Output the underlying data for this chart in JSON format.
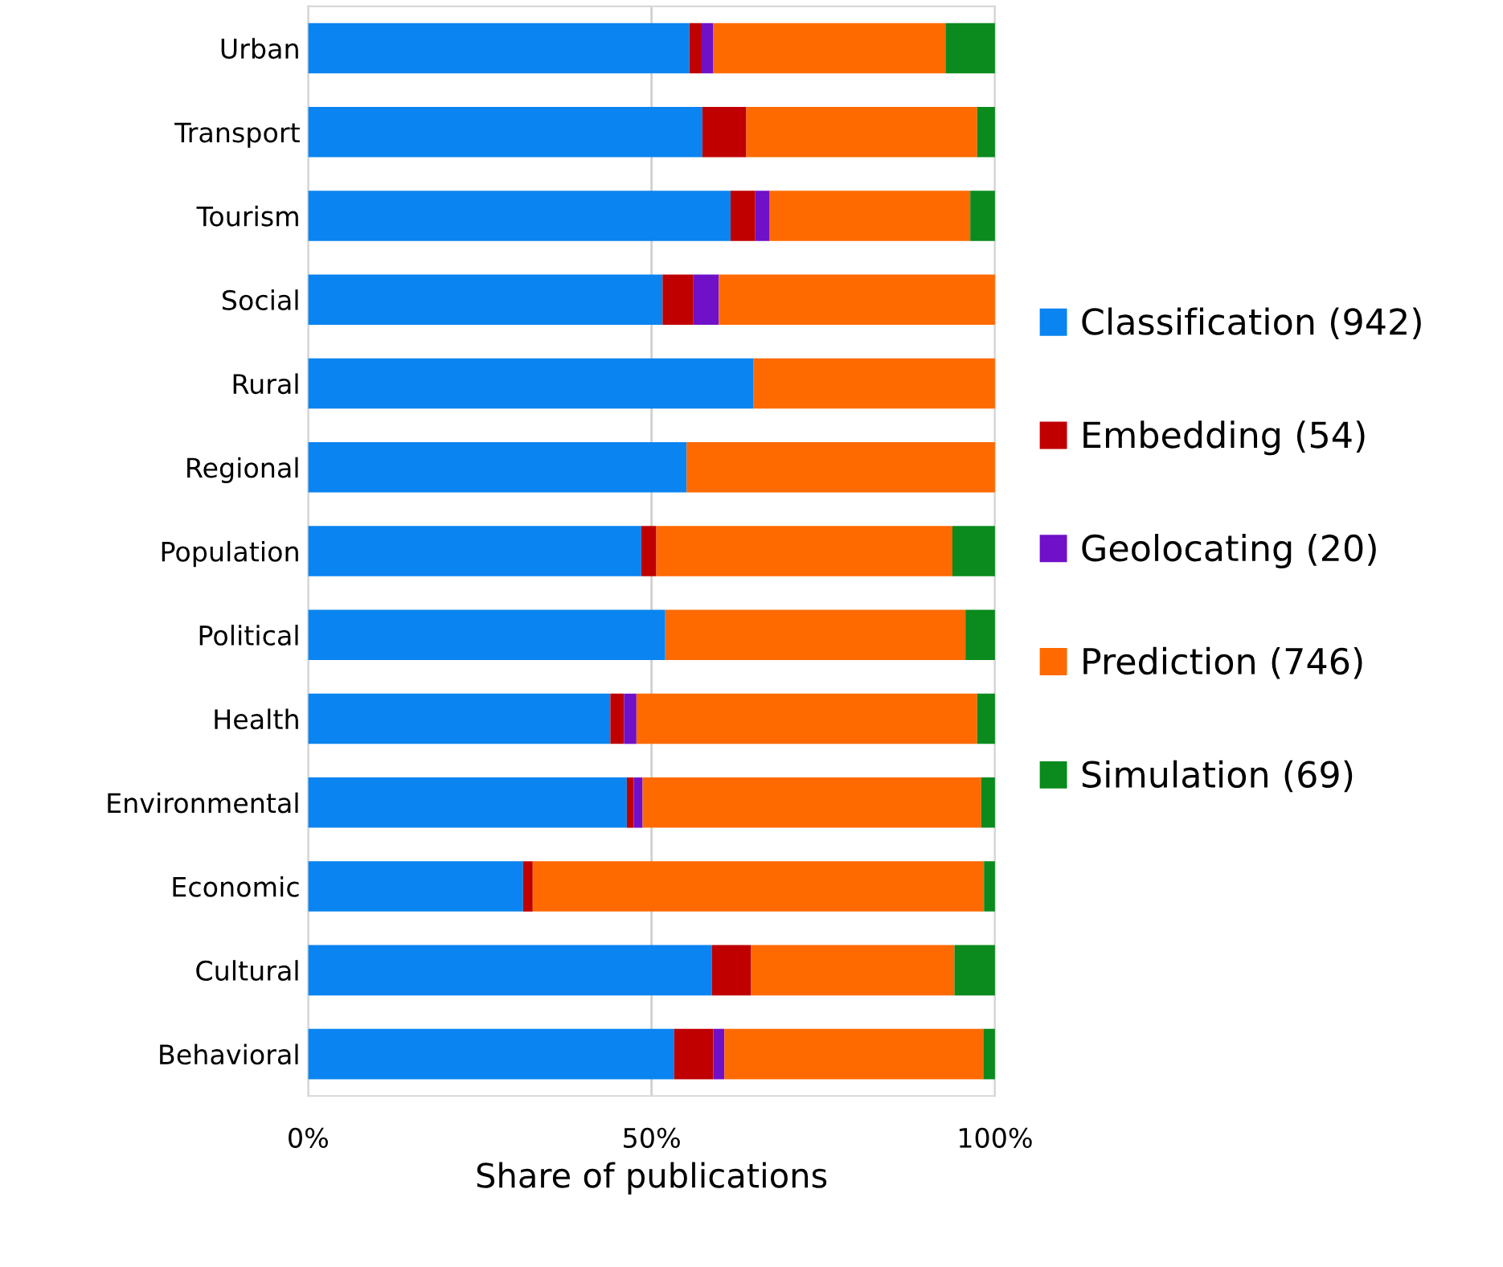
{
  "chart_data": {
    "type": "bar",
    "orientation": "horizontal",
    "stacked": true,
    "xlabel": "Share of publications",
    "categories": [
      "Urban",
      "Transport",
      "Tourism",
      "Social",
      "Rural",
      "Regional",
      "Population",
      "Political",
      "Health",
      "Environmental",
      "Economic",
      "Cultural",
      "Behavioral"
    ],
    "series": [
      {
        "name": "Classification (942)",
        "color": "#0a84f0",
        "values": [
          55.5,
          57.4,
          61.5,
          51.6,
          64.8,
          55.1,
          48.5,
          52.0,
          44.0,
          46.4,
          31.3,
          58.8,
          53.3
        ]
      },
      {
        "name": "Embedding (54)",
        "color": "#c00000",
        "values": [
          1.8,
          6.4,
          3.6,
          4.5,
          0,
          0,
          2.2,
          0,
          2.0,
          1.0,
          1.4,
          5.7,
          5.7
        ]
      },
      {
        "name": "Geolocating (20)",
        "color": "#7010c8",
        "values": [
          1.7,
          0,
          2.1,
          3.7,
          0,
          0,
          0,
          0,
          1.8,
          1.3,
          0,
          0,
          1.6
        ]
      },
      {
        "name": "Prediction (746)",
        "color": "#ff6a00",
        "values": [
          33.8,
          33.6,
          29.2,
          40.2,
          35.2,
          44.9,
          43.1,
          43.7,
          49.6,
          49.3,
          65.7,
          29.6,
          37.7
        ]
      },
      {
        "name": "Simulation (69)",
        "color": "#0b8a1e",
        "values": [
          7.2,
          2.6,
          3.6,
          0,
          0,
          0,
          6.2,
          4.3,
          2.6,
          2.0,
          1.6,
          5.9,
          1.7
        ]
      }
    ],
    "xlim": [
      0,
      100
    ],
    "xticks": [
      {
        "value": 0,
        "label": "0%"
      },
      {
        "value": 50,
        "label": "50%"
      },
      {
        "value": 100,
        "label": "100%"
      }
    ],
    "grid": "x",
    "legend": "right"
  }
}
